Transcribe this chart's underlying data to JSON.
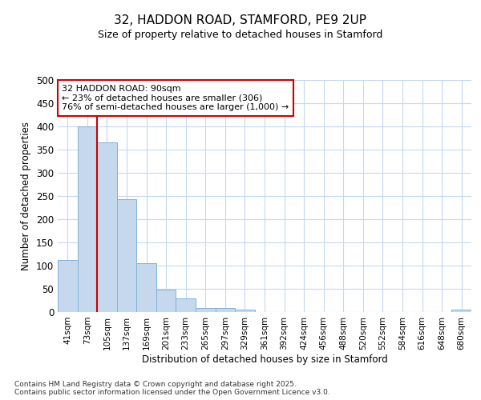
{
  "title_line1": "32, HADDON ROAD, STAMFORD, PE9 2UP",
  "title_line2": "Size of property relative to detached houses in Stamford",
  "xlabel": "Distribution of detached houses by size in Stamford",
  "ylabel": "Number of detached properties",
  "bar_labels": [
    "41sqm",
    "73sqm",
    "105sqm",
    "137sqm",
    "169sqm",
    "201sqm",
    "233sqm",
    "265sqm",
    "297sqm",
    "329sqm",
    "361sqm",
    "392sqm",
    "424sqm",
    "456sqm",
    "488sqm",
    "520sqm",
    "552sqm",
    "584sqm",
    "616sqm",
    "648sqm",
    "680sqm"
  ],
  "bar_values": [
    112,
    400,
    365,
    243,
    105,
    48,
    30,
    8,
    8,
    5,
    0,
    0,
    0,
    0,
    0,
    0,
    0,
    0,
    0,
    0,
    5
  ],
  "bar_color": "#c5d8ee",
  "bar_edge_color": "#7eb3d8",
  "property_line_x": 1.5,
  "annotation_text": "32 HADDON ROAD: 90sqm\n← 23% of detached houses are smaller (306)\n76% of semi-detached houses are larger (1,000) →",
  "annotation_box_color": "#ffffff",
  "annotation_box_edge": "#cc0000",
  "vline_color": "#cc0000",
  "ylim": [
    0,
    500
  ],
  "yticks": [
    0,
    50,
    100,
    150,
    200,
    250,
    300,
    350,
    400,
    450,
    500
  ],
  "footer": "Contains HM Land Registry data © Crown copyright and database right 2025.\nContains public sector information licensed under the Open Government Licence v3.0.",
  "bg_color": "#ffffff",
  "plot_bg_color": "#ffffff",
  "grid_color": "#c5d8ee"
}
